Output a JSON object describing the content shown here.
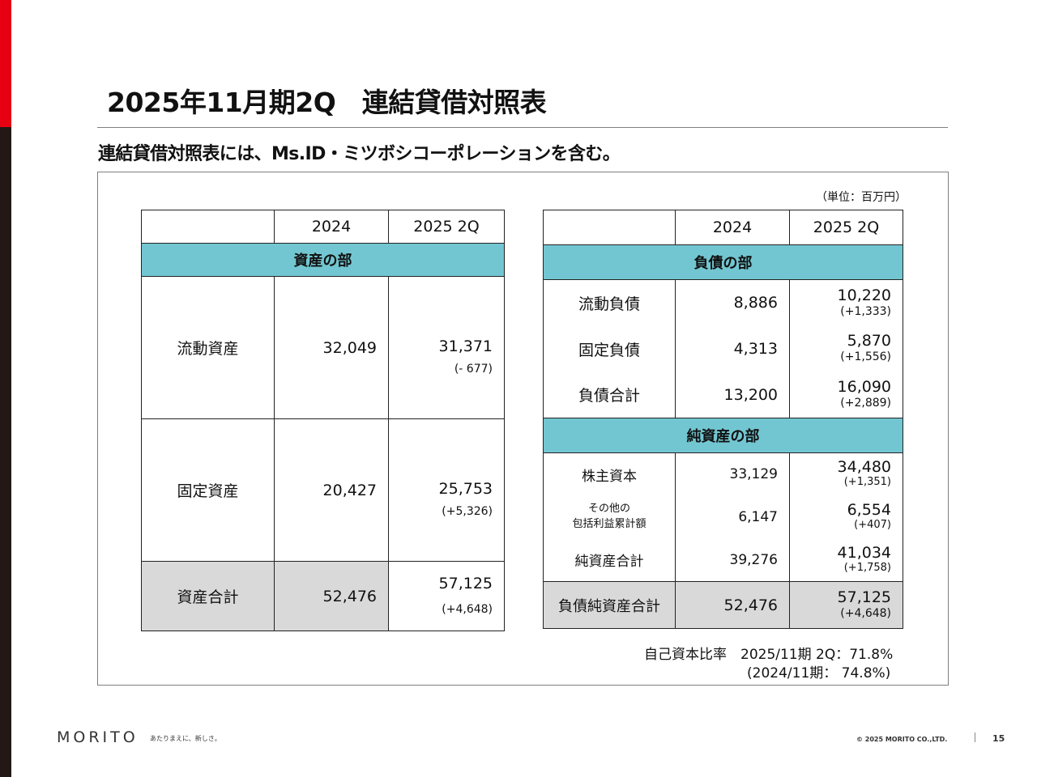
{
  "title": "2025年11月期2Q　連結貸借対照表",
  "subtitle": "連結貸借対照表には、Ms.ID・ミツボシコーポレーションを含む。",
  "unit": "（単位：百万円）",
  "assets_table": {
    "headers": [
      "",
      "2024",
      "2025 2Q"
    ],
    "section": "資産の部",
    "rows": [
      {
        "label": "流動資産",
        "y2024": "32,049",
        "y2025": "31,371",
        "change": "(- 677)"
      },
      {
        "label": "固定資産",
        "y2024": "20,427",
        "y2025": "25,753",
        "change": "(+5,326)"
      },
      {
        "label": "資産合計",
        "y2024": "52,476",
        "y2025": "57,125",
        "change": "(+4,648)"
      }
    ]
  },
  "liabilities_table": {
    "headers": [
      "",
      "2024",
      "2025 2Q"
    ],
    "section_liabilities": "負債の部",
    "liabilities_rows": [
      {
        "label": "流動負債",
        "y2024": "8,886",
        "y2025": "10,220",
        "change": "(+1,333)"
      },
      {
        "label": "固定負債",
        "y2024": "4,313",
        "y2025": "5,870",
        "change": "(+1,556)"
      },
      {
        "label": "負債合計",
        "y2024": "13,200",
        "y2025": "16,090",
        "change": "(+2,889)"
      }
    ],
    "section_equity": "純資産の部",
    "equity_rows": [
      {
        "label": "株主資本",
        "y2024": "33,129",
        "y2025": "34,480",
        "change": "(+1,351)"
      },
      {
        "label_line1": "その他の",
        "label_line2": "包括利益累計額",
        "y2024": "6,147",
        "y2025": "6,554",
        "change": "(+407)"
      },
      {
        "label": "純資産合計",
        "y2024": "39,276",
        "y2025": "41,034",
        "change": "(+1,758)"
      }
    ],
    "total": {
      "label": "負債純資産合計",
      "y2024": "52,476",
      "y2025": "57,125",
      "change": "(+4,648)"
    }
  },
  "equity_ratio": {
    "line1": "自己資本比率　2025/11期 2Q：71.8%",
    "line2": "(2024/11期：  74.8%)"
  },
  "footer": {
    "logo": "MORITO",
    "tagline": "あたりまえに、新しさ。",
    "copyright": "© 2025 MORITO CO.,LTD.",
    "page": "15"
  },
  "colors": {
    "accent_red": "#e60012",
    "section_header": "#72c6d1",
    "total_row": "#d9d9d9"
  }
}
